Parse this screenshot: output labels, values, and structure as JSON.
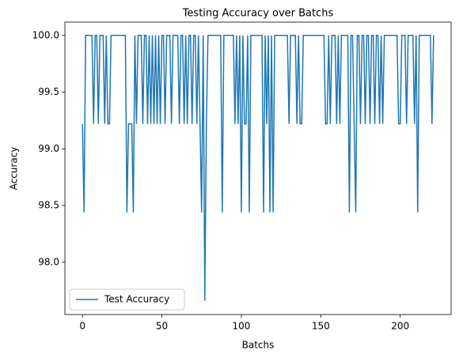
{
  "chart_data": {
    "type": "line",
    "title": "Testing Accuracy over Batchs",
    "x_label": "Batchs",
    "y_label": "Accuracy",
    "x": [
      0,
      1,
      2,
      3,
      4,
      5,
      6,
      7,
      8,
      9,
      10,
      11,
      12,
      13,
      14,
      15,
      16,
      17,
      18,
      19,
      20,
      21,
      22,
      23,
      24,
      25,
      26,
      27,
      28,
      29,
      30,
      31,
      32,
      33,
      34,
      35,
      36,
      37,
      38,
      39,
      40,
      41,
      42,
      43,
      44,
      45,
      46,
      47,
      48,
      49,
      50,
      51,
      52,
      53,
      54,
      55,
      56,
      57,
      58,
      59,
      60,
      61,
      62,
      63,
      64,
      65,
      66,
      67,
      68,
      69,
      70,
      71,
      72,
      73,
      74,
      75,
      76,
      77,
      78,
      79,
      80,
      81,
      82,
      83,
      84,
      85,
      86,
      87,
      88,
      89,
      90,
      91,
      92,
      93,
      94,
      95,
      96,
      97,
      98,
      99,
      100,
      101,
      102,
      103,
      104,
      105,
      106,
      107,
      108,
      109,
      110,
      111,
      112,
      113,
      114,
      115,
      116,
      117,
      118,
      119,
      120,
      121,
      122,
      123,
      124,
      125,
      126,
      127,
      128,
      129,
      130,
      131,
      132,
      133,
      134,
      135,
      136,
      137,
      138,
      139,
      140,
      141,
      142,
      143,
      144,
      145,
      146,
      147,
      148,
      149,
      150,
      151,
      152,
      153,
      154,
      155,
      156,
      157,
      158,
      159,
      160,
      161,
      162,
      163,
      164,
      165,
      166,
      167,
      168,
      169,
      170,
      171,
      172,
      173,
      174,
      175,
      176,
      177,
      178,
      179,
      180,
      181,
      182,
      183,
      184,
      185,
      186,
      187,
      188,
      189,
      190,
      191,
      192,
      193,
      194,
      195,
      196,
      197,
      198,
      199,
      200,
      201,
      202,
      203,
      204,
      205,
      206,
      207,
      208,
      209,
      210,
      211,
      212,
      213,
      214,
      215,
      216,
      217,
      218,
      219,
      220,
      221
    ],
    "series": [
      {
        "name": "Test Accuracy",
        "color": "#1f77b4",
        "values": [
          99.22,
          98.44,
          100,
          100,
          100,
          100,
          100,
          99.22,
          100,
          100,
          99.22,
          100,
          100,
          100,
          99.22,
          100,
          99.22,
          99.22,
          100,
          100,
          100,
          100,
          100,
          100,
          100,
          100,
          100,
          100,
          98.44,
          99.22,
          99.22,
          99.22,
          98.44,
          100,
          99.22,
          100,
          100,
          100,
          99.22,
          100,
          100,
          99.22,
          100,
          99.22,
          100,
          99.22,
          100,
          99.22,
          100,
          99.22,
          100,
          100,
          99.22,
          100,
          100,
          100,
          99.22,
          100,
          100,
          100,
          100,
          99.22,
          100,
          100,
          99.22,
          100,
          99.22,
          100,
          100,
          99.22,
          100,
          100,
          99.22,
          100,
          99.22,
          98.44,
          100,
          97.66,
          99.22,
          100,
          100,
          100,
          100,
          100,
          100,
          100,
          100,
          100,
          98.44,
          100,
          100,
          100,
          100,
          100,
          100,
          100,
          99.22,
          100,
          99.22,
          100,
          98.44,
          100,
          99.22,
          99.22,
          100,
          98.44,
          100,
          100,
          100,
          100,
          100,
          100,
          100,
          100,
          98.44,
          100,
          99.22,
          100,
          98.44,
          100,
          98.44,
          100,
          100,
          100,
          100,
          100,
          100,
          100,
          100,
          100,
          99.22,
          100,
          100,
          100,
          100,
          99.22,
          100,
          99.22,
          99.22,
          100,
          100,
          100,
          100,
          100,
          100,
          100,
          100,
          100,
          100,
          100,
          100,
          100,
          100,
          99.22,
          99.22,
          100,
          99.22,
          100,
          100,
          100,
          99.22,
          100,
          99.22,
          100,
          100,
          100,
          100,
          100,
          98.44,
          100,
          100,
          99.22,
          98.44,
          100,
          100,
          99.22,
          100,
          100,
          99.22,
          100,
          100,
          99.22,
          100,
          100,
          99.22,
          100,
          100,
          99.22,
          100,
          99.22,
          100,
          100,
          100,
          100,
          100,
          100,
          100,
          100,
          100,
          99.22,
          99.22,
          100,
          100,
          100,
          99.22,
          100,
          100,
          100,
          100,
          99.22,
          100,
          98.44,
          100,
          100,
          100,
          100,
          100,
          100,
          100,
          100,
          99.22,
          100
        ]
      }
    ],
    "xlim": [
      -11.05,
      232.05
    ],
    "xticks": [
      0,
      50,
      100,
      150,
      200
    ],
    "ylim": [
      97.539,
      100.117
    ],
    "yticks": [
      {
        "value": 98,
        "label": "98.0"
      },
      98.5,
      {
        "value": 99,
        "label": "99.0"
      },
      99.5,
      {
        "value": 100,
        "label": "100.0"
      }
    ],
    "legend": "lower left"
  }
}
